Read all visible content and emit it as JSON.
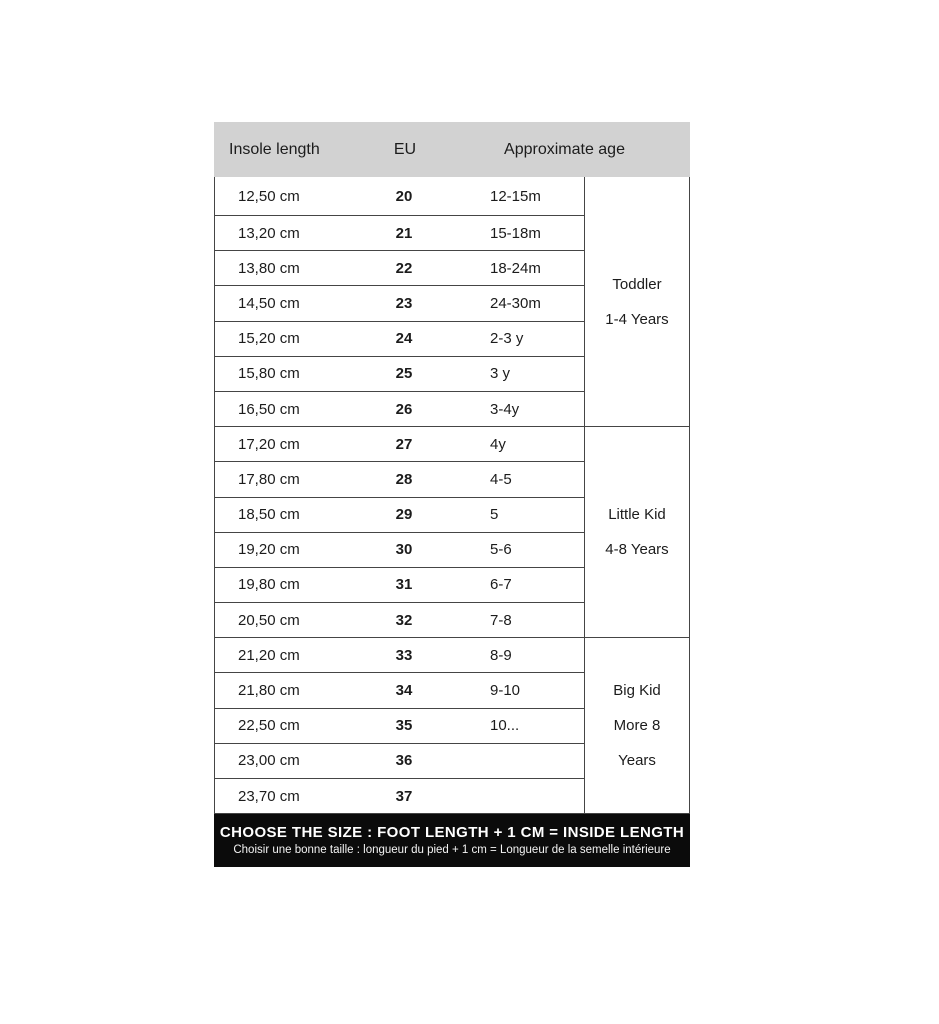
{
  "colors": {
    "header_bg": "#d2d2d2",
    "border": "#454545",
    "text": "#1c1c1c",
    "footer_bg": "#0b0b0b",
    "footer_text": "#ffffff"
  },
  "table": {
    "headers": {
      "insole": "Insole length",
      "eu": "EU",
      "age": "Approximate age"
    },
    "rows": [
      {
        "insole": "12,50 cm",
        "eu": "20",
        "age": "12-15m"
      },
      {
        "insole": "13,20 cm",
        "eu": "21",
        "age": "15-18m"
      },
      {
        "insole": "13,80 cm",
        "eu": "22",
        "age": "18-24m"
      },
      {
        "insole": "14,50 cm",
        "eu": "23",
        "age": "24-30m"
      },
      {
        "insole": "15,20 cm",
        "eu": "24",
        "age": "2-3 y"
      },
      {
        "insole": "15,80 cm",
        "eu": "25",
        "age": "3 y"
      },
      {
        "insole": "16,50 cm",
        "eu": "26",
        "age": "3-4y"
      },
      {
        "insole": "17,20 cm",
        "eu": "27",
        "age": "4y"
      },
      {
        "insole": "17,80 cm",
        "eu": "28",
        "age": "4-5"
      },
      {
        "insole": "18,50 cm",
        "eu": "29",
        "age": "5"
      },
      {
        "insole": "19,20 cm",
        "eu": "30",
        "age": "5-6"
      },
      {
        "insole": "19,80 cm",
        "eu": "31",
        "age": "6-7"
      },
      {
        "insole": "20,50 cm",
        "eu": "32",
        "age": "7-8"
      },
      {
        "insole": "21,20 cm",
        "eu": "33",
        "age": "8-9"
      },
      {
        "insole": "21,80 cm",
        "eu": "34",
        "age": "9-10"
      },
      {
        "insole": "22,50 cm",
        "eu": "35",
        "age": "10..."
      },
      {
        "insole": "23,00 cm",
        "eu": "36",
        "age": ""
      },
      {
        "insole": "23,70 cm",
        "eu": "37",
        "age": ""
      }
    ],
    "groups": [
      {
        "name": "toddler",
        "lines": [
          "Toddler",
          "1-4 Years"
        ],
        "row_span": 7
      },
      {
        "name": "little-kid",
        "lines": [
          "Little Kid",
          "4-8 Years"
        ],
        "row_span": 6
      },
      {
        "name": "big-kid",
        "lines": [
          "Big Kid",
          "More 8",
          "Years"
        ],
        "row_span": 5
      }
    ]
  },
  "footer": {
    "line1": "CHOOSE THE SIZE : FOOT LENGTH + 1 CM = INSIDE LENGTH",
    "line2": "Choisir une bonne taille : longueur du pied + 1 cm = Longueur de la semelle intérieure"
  }
}
